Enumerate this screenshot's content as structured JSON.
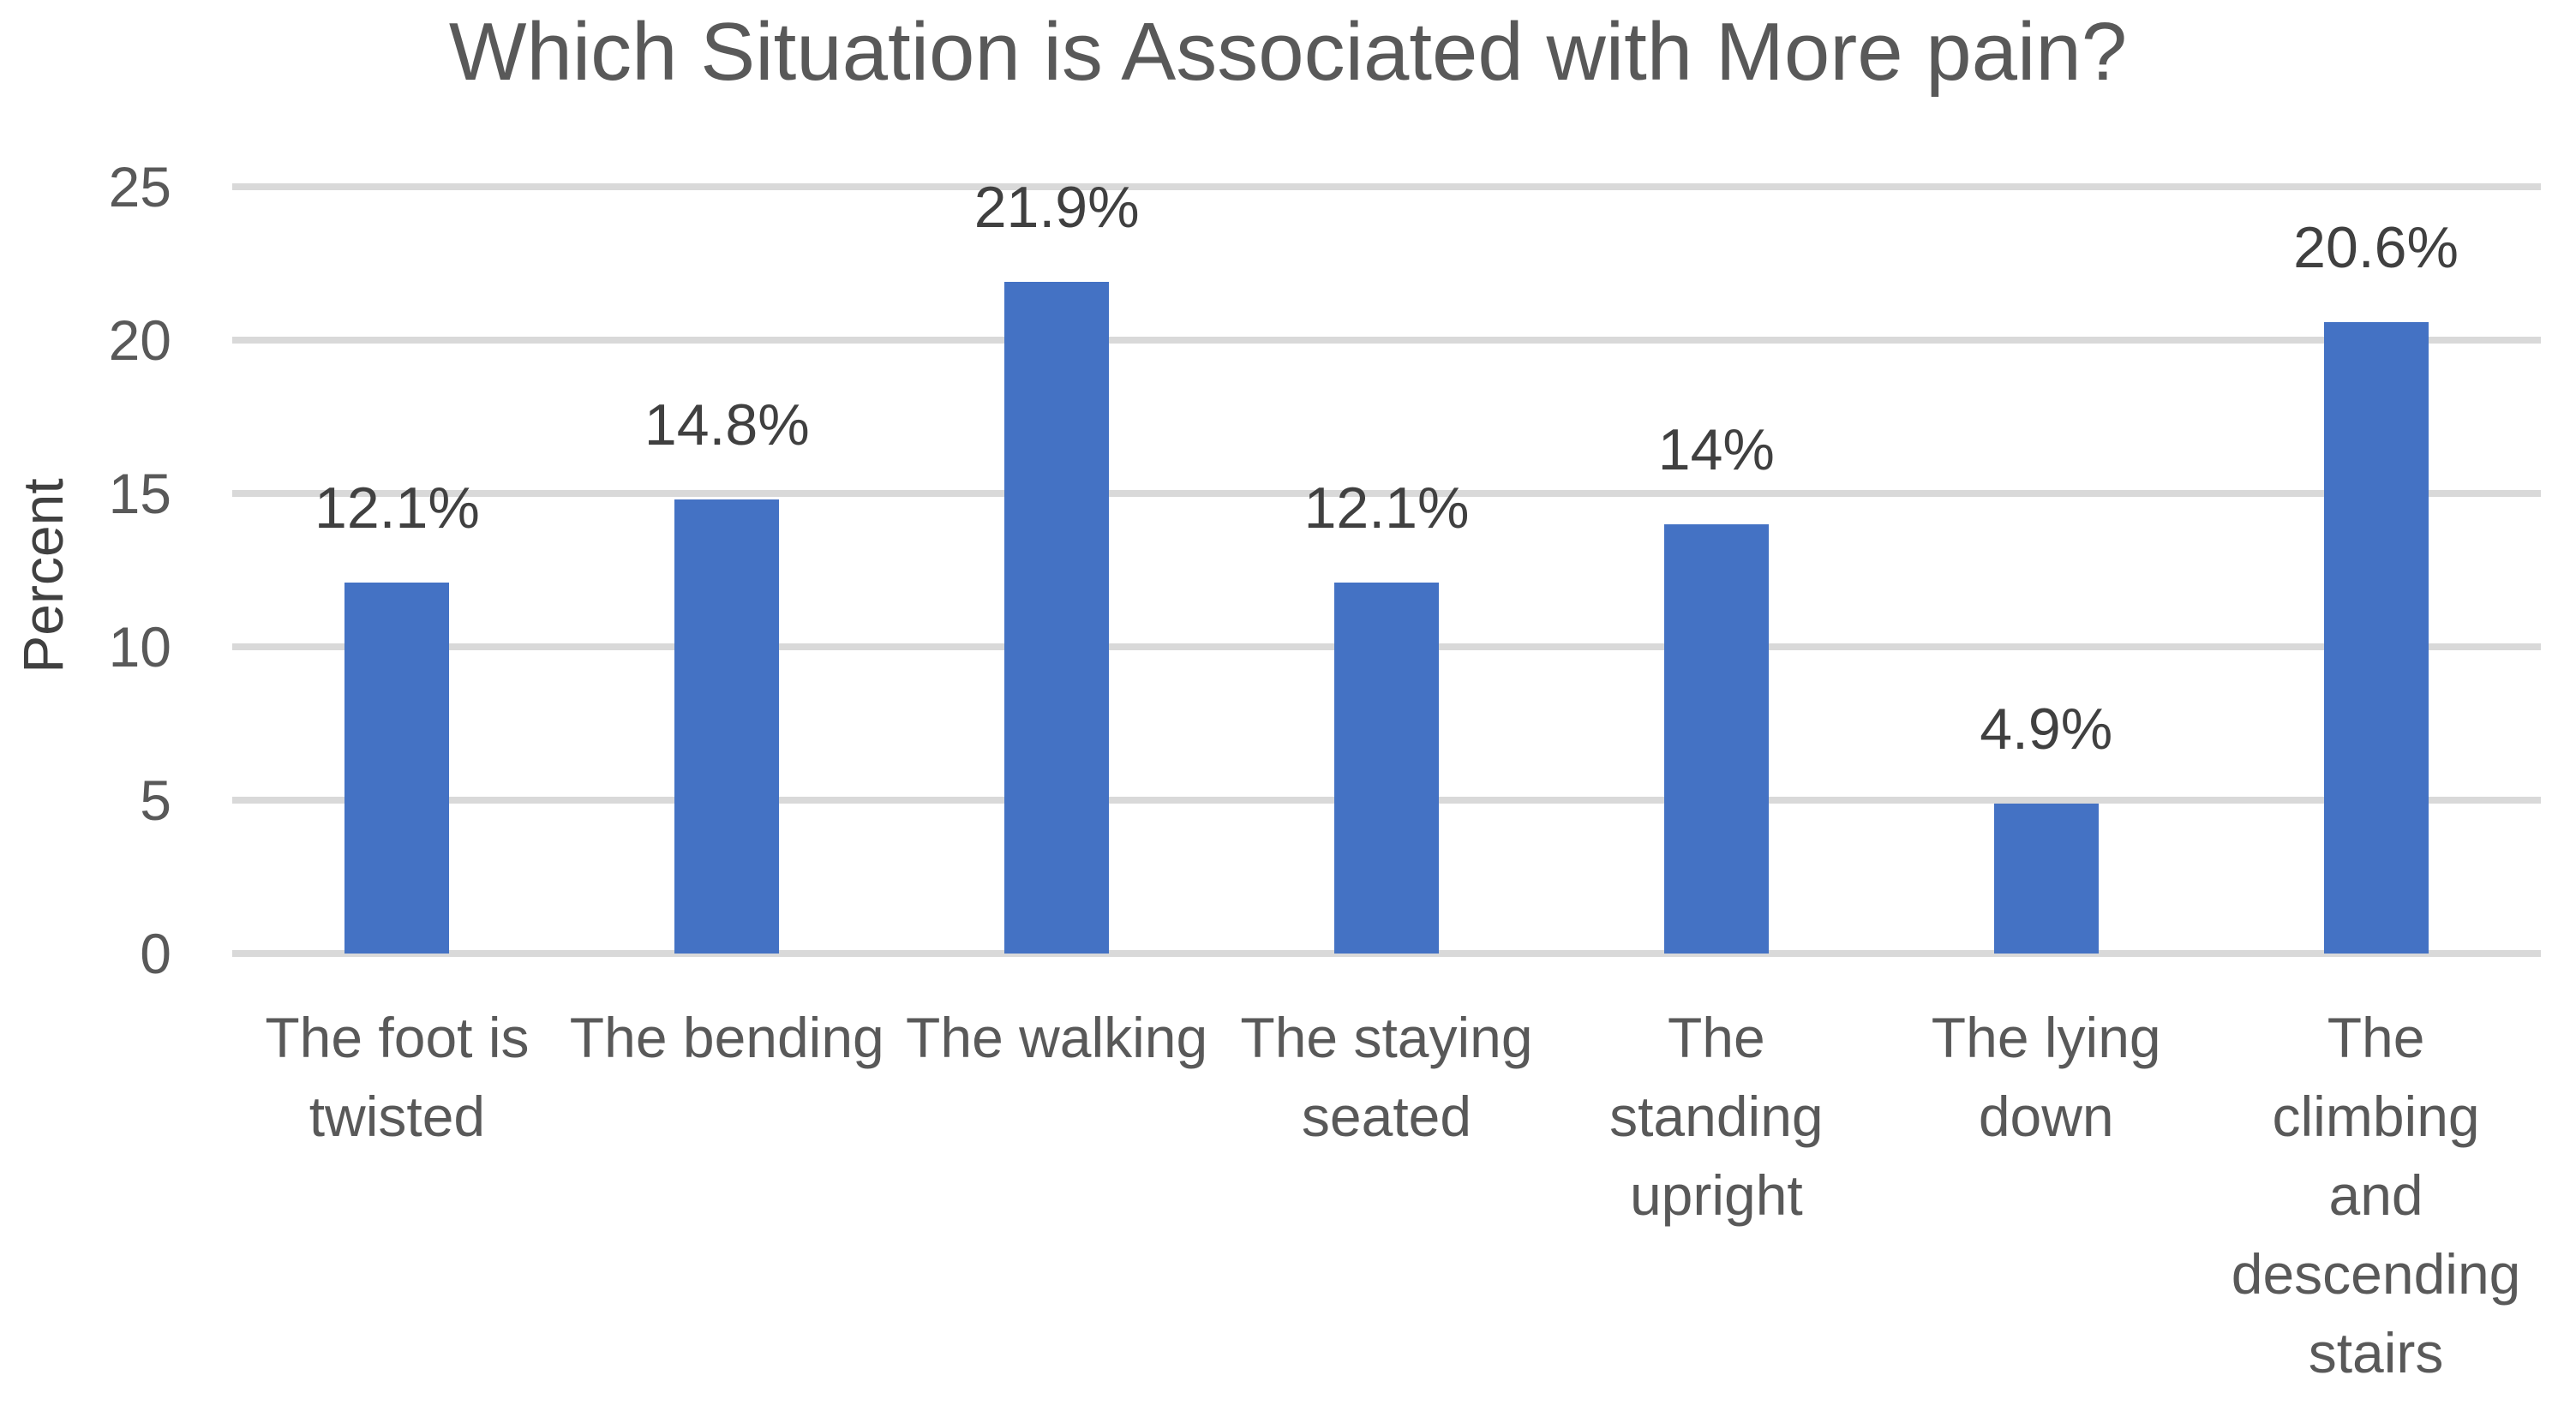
{
  "chart_data": {
    "type": "bar",
    "title": "Which Situation is Associated with More pain?",
    "xlabel": "",
    "ylabel": "Percent",
    "ylim": [
      0,
      25
    ],
    "yticks": [
      0,
      5,
      10,
      15,
      20,
      25
    ],
    "grid": true,
    "legend": false,
    "categories": [
      "The foot is\ntwisted",
      "The bending",
      "The walking",
      "The staying\nseated",
      "The\nstanding\nupright",
      "The lying\ndown",
      "The\nclimbing\nand\ndescending\nstairs"
    ],
    "values": [
      12.1,
      14.8,
      21.9,
      12.1,
      14,
      4.9,
      20.6
    ],
    "data_labels": [
      "12.1%",
      "14.8%",
      "21.9%",
      "12.1%",
      "14%",
      "4.9%",
      "20.6%"
    ],
    "colors": {
      "bar": "#4472C4",
      "gridline": "#D9D9D9",
      "tick_label": "#595959",
      "category_label": "#595959",
      "data_label": "#404040",
      "title": "#595959",
      "axis_title": "#404040"
    }
  }
}
